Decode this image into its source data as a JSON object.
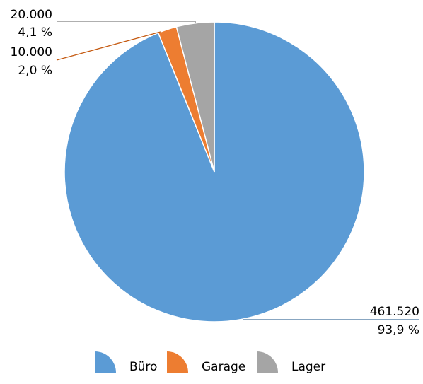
{
  "chart_data": {
    "type": "pie",
    "categories": [
      "Büro",
      "Garage",
      "Lager"
    ],
    "values": [
      461520,
      10000,
      20000
    ],
    "value_labels": [
      "461.520",
      "10.000",
      "20.000"
    ],
    "percent_labels": [
      "93,9 %",
      "2,0 %",
      "4,1 %"
    ],
    "colors": [
      "#5b9bd5",
      "#ed7d31",
      "#a5a5a5"
    ],
    "legend": {
      "placement": "bottom",
      "entries": [
        "Büro",
        "Garage",
        "Lager"
      ]
    },
    "title": ""
  }
}
